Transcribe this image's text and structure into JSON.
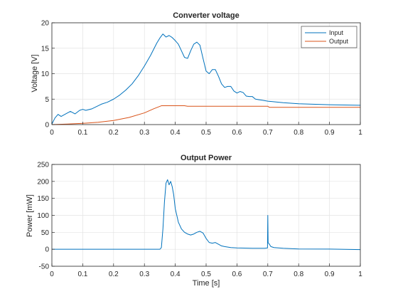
{
  "chart_data": [
    {
      "type": "line",
      "title": "Converter voltage",
      "xlabel": "",
      "ylabel": "Voltage [V]",
      "xlim": [
        0,
        1
      ],
      "ylim": [
        0,
        20
      ],
      "xticks": [
        "0",
        "0.1",
        "0.2",
        "0.3",
        "0.4",
        "0.5",
        "0.6",
        "0.7",
        "0.8",
        "0.9",
        "1"
      ],
      "yticks": [
        "0",
        "5",
        "10",
        "15",
        "20"
      ],
      "grid": true,
      "legend": "top-right",
      "series": [
        {
          "name": "Input",
          "color": "#0072BD",
          "x": [
            0,
            0.01,
            0.02,
            0.03,
            0.045,
            0.06,
            0.075,
            0.09,
            0.1,
            0.11,
            0.13,
            0.15,
            0.16,
            0.18,
            0.2,
            0.22,
            0.24,
            0.26,
            0.28,
            0.3,
            0.32,
            0.34,
            0.35,
            0.36,
            0.37,
            0.38,
            0.39,
            0.4,
            0.41,
            0.42,
            0.43,
            0.44,
            0.45,
            0.46,
            0.47,
            0.48,
            0.49,
            0.5,
            0.51,
            0.52,
            0.53,
            0.54,
            0.55,
            0.56,
            0.57,
            0.58,
            0.59,
            0.6,
            0.61,
            0.62,
            0.63,
            0.64,
            0.65,
            0.66,
            0.67,
            0.68,
            0.7,
            0.75,
            0.8,
            0.9,
            1.0
          ],
          "y": [
            0.1,
            1.3,
            2.0,
            1.6,
            2.1,
            2.6,
            2.1,
            2.8,
            3.0,
            2.8,
            3.1,
            3.7,
            4.0,
            4.4,
            5.0,
            5.8,
            6.8,
            8.0,
            9.6,
            11.5,
            13.6,
            16.0,
            17.0,
            17.8,
            17.2,
            17.5,
            17.1,
            16.5,
            15.8,
            14.5,
            13.2,
            13.0,
            14.5,
            15.8,
            16.2,
            15.6,
            13.0,
            10.5,
            10.0,
            10.8,
            10.8,
            9.5,
            8.0,
            7.3,
            7.5,
            7.5,
            6.6,
            6.2,
            6.5,
            6.3,
            5.6,
            5.5,
            5.5,
            5.0,
            4.9,
            4.8,
            4.6,
            4.3,
            4.1,
            3.9,
            3.8
          ]
        },
        {
          "name": "Output",
          "color": "#D95319",
          "x": [
            0,
            0.05,
            0.1,
            0.15,
            0.2,
            0.25,
            0.3,
            0.33,
            0.355,
            0.4,
            0.43,
            0.44,
            0.5,
            0.6,
            0.7,
            0.705,
            0.8,
            0.9,
            1.0
          ],
          "y": [
            0.0,
            0.1,
            0.25,
            0.45,
            0.8,
            1.4,
            2.3,
            3.1,
            3.7,
            3.7,
            3.7,
            3.6,
            3.6,
            3.6,
            3.6,
            3.4,
            3.4,
            3.4,
            3.4
          ]
        }
      ]
    },
    {
      "type": "line",
      "title": "Output Power",
      "xlabel": "Time [s]",
      "ylabel": "Power [mW]",
      "xlim": [
        0,
        1
      ],
      "ylim": [
        -50,
        250
      ],
      "xticks": [
        "0",
        "0.1",
        "0.2",
        "0.3",
        "0.4",
        "0.5",
        "0.6",
        "0.7",
        "0.8",
        "0.9",
        "1"
      ],
      "yticks": [
        "-50",
        "0",
        "50",
        "100",
        "150",
        "200",
        "250"
      ],
      "grid": true,
      "series": [
        {
          "color": "#0072BD",
          "x": [
            0,
            0.1,
            0.2,
            0.3,
            0.35,
            0.355,
            0.36,
            0.365,
            0.37,
            0.375,
            0.38,
            0.385,
            0.39,
            0.395,
            0.4,
            0.41,
            0.42,
            0.43,
            0.44,
            0.45,
            0.46,
            0.47,
            0.48,
            0.49,
            0.5,
            0.51,
            0.52,
            0.53,
            0.54,
            0.55,
            0.56,
            0.58,
            0.6,
            0.65,
            0.69,
            0.699,
            0.7,
            0.701,
            0.705,
            0.71,
            0.72,
            0.75,
            0.8,
            0.9,
            1.0
          ],
          "y": [
            0,
            0,
            0,
            0,
            0,
            5,
            60,
            140,
            195,
            205,
            190,
            200,
            185,
            160,
            120,
            80,
            60,
            50,
            45,
            42,
            45,
            50,
            53,
            48,
            32,
            20,
            18,
            20,
            15,
            10,
            8,
            5,
            4,
            3,
            3,
            4,
            100,
            20,
            15,
            8,
            5,
            3,
            1,
            0.5,
            -1
          ]
        }
      ]
    }
  ]
}
